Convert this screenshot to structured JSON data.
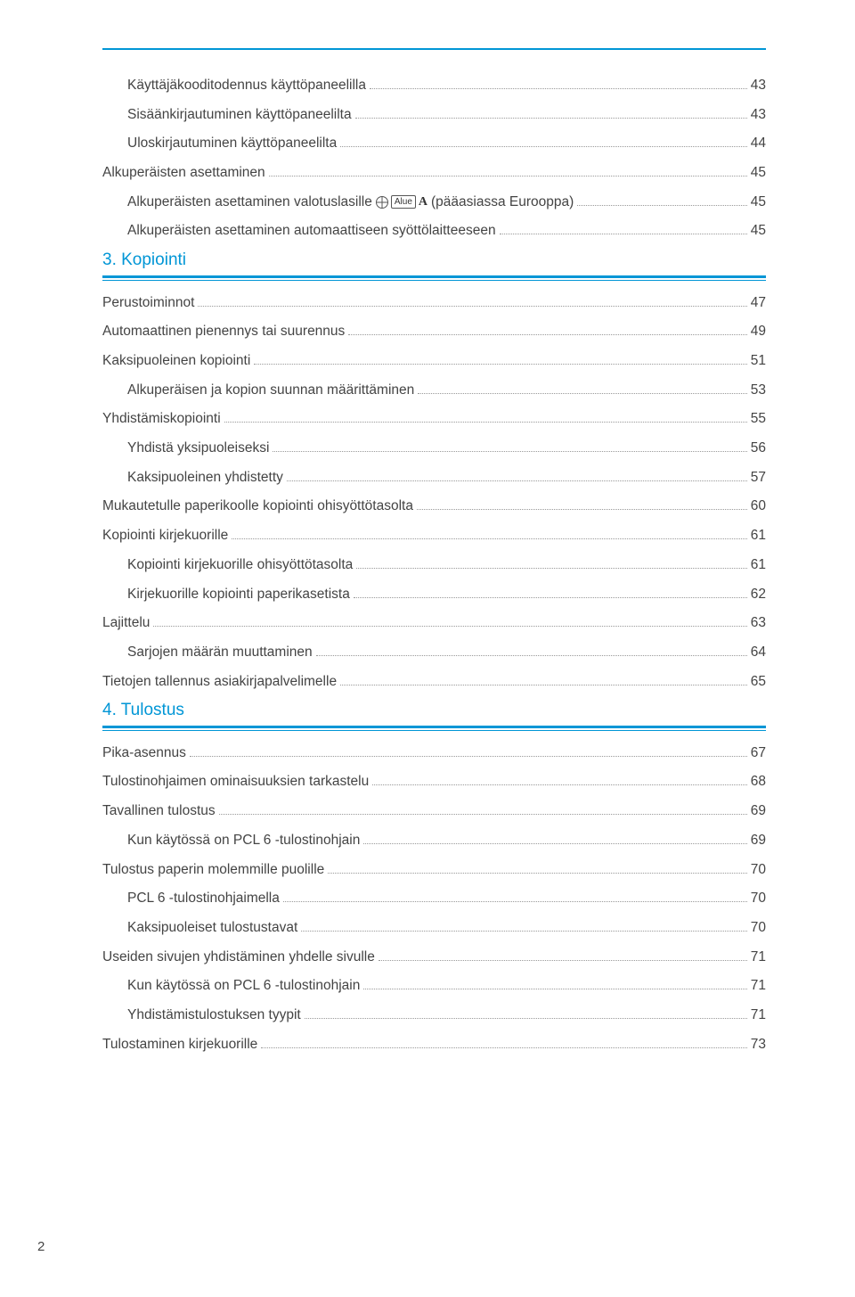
{
  "sections": [
    {
      "entries": [
        {
          "level": 2,
          "label": "Käyttäjäkooditodennus käyttöpaneelilla",
          "page": "43"
        },
        {
          "level": 2,
          "label": "Sisäänkirjautuminen käyttöpaneelilta",
          "page": "43"
        },
        {
          "level": 2,
          "label": "Uloskirjautuminen käyttöpaneelilta",
          "page": "44"
        },
        {
          "level": 1,
          "label": "Alkuperäisten asettaminen",
          "page": "45"
        },
        {
          "level": 2,
          "label": "Alkuperäisten asettaminen valotuslasille",
          "icons": true,
          "tail": "(pääasiassa Eurooppa)",
          "page": "45"
        },
        {
          "level": 2,
          "label": "Alkuperäisten asettaminen automaattiseen syöttölaitteeseen",
          "page": "45"
        }
      ]
    },
    {
      "heading": "3. Kopiointi",
      "entries": [
        {
          "level": 1,
          "label": "Perustoiminnot",
          "page": "47"
        },
        {
          "level": 1,
          "label": "Automaattinen pienennys tai suurennus",
          "page": "49"
        },
        {
          "level": 1,
          "label": "Kaksipuoleinen kopiointi",
          "page": "51"
        },
        {
          "level": 2,
          "label": "Alkuperäisen ja kopion suunnan määrittäminen",
          "page": "53"
        },
        {
          "level": 1,
          "label": "Yhdistämiskopiointi",
          "page": "55"
        },
        {
          "level": 2,
          "label": "Yhdistä yksipuoleiseksi",
          "page": "56"
        },
        {
          "level": 2,
          "label": "Kaksipuoleinen yhdistetty",
          "page": "57"
        },
        {
          "level": 1,
          "label": "Mukautetulle paperikoolle kopiointi ohisyöttötasolta",
          "page": "60"
        },
        {
          "level": 1,
          "label": "Kopiointi kirjekuorille",
          "page": "61"
        },
        {
          "level": 2,
          "label": "Kopiointi kirjekuorille ohisyöttötasolta",
          "page": "61"
        },
        {
          "level": 2,
          "label": "Kirjekuorille kopiointi paperikasetista",
          "page": "62"
        },
        {
          "level": 1,
          "label": "Lajittelu",
          "page": "63"
        },
        {
          "level": 2,
          "label": "Sarjojen määrän muuttaminen",
          "page": "64"
        },
        {
          "level": 1,
          "label": "Tietojen tallennus asiakirjapalvelimelle",
          "page": "65"
        }
      ]
    },
    {
      "heading": "4. Tulostus",
      "entries": [
        {
          "level": 1,
          "label": "Pika-asennus",
          "page": "67"
        },
        {
          "level": 1,
          "label": "Tulostinohjaimen ominaisuuksien tarkastelu",
          "page": "68"
        },
        {
          "level": 1,
          "label": "Tavallinen tulostus",
          "page": "69"
        },
        {
          "level": 2,
          "label": "Kun käytössä on PCL 6 -tulostinohjain",
          "page": "69"
        },
        {
          "level": 1,
          "label": "Tulostus paperin molemmille puolille",
          "page": "70"
        },
        {
          "level": 2,
          "label": "PCL 6 -tulostinohjaimella",
          "page": "70"
        },
        {
          "level": 2,
          "label": "Kaksipuoleiset tulostustavat",
          "page": "70"
        },
        {
          "level": 1,
          "label": "Useiden sivujen yhdistäminen yhdelle sivulle",
          "page": "71"
        },
        {
          "level": 2,
          "label": "Kun käytössä on PCL 6 -tulostinohjain",
          "page": "71"
        },
        {
          "level": 2,
          "label": "Yhdistämistulostuksen tyypit",
          "page": "71"
        },
        {
          "level": 1,
          "label": "Tulostaminen kirjekuorille",
          "page": "73"
        }
      ]
    }
  ],
  "iconAlueLabel": "Alue",
  "iconALabel": "A",
  "footerPage": "2"
}
